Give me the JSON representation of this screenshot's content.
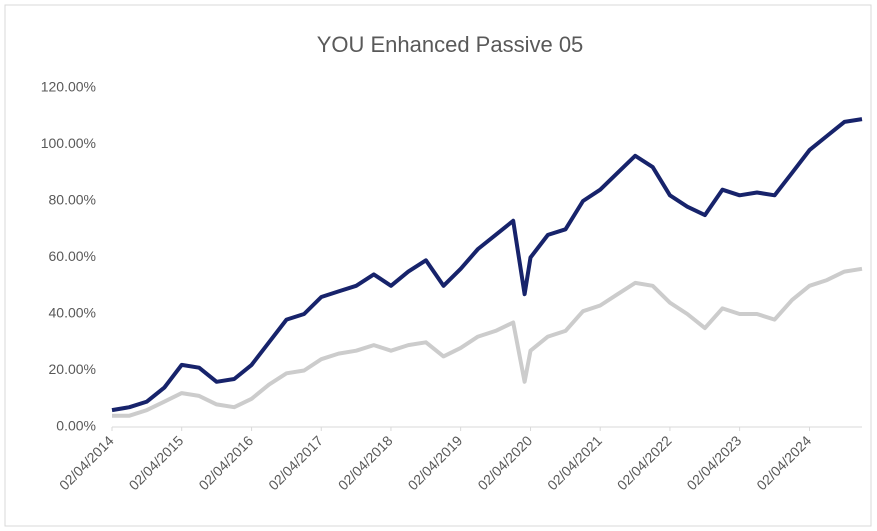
{
  "chart_data": {
    "type": "line",
    "title": "YOU Enhanced Passive 05",
    "x": [
      "02/04/2014",
      "02/07/2014",
      "02/10/2014",
      "02/01/2015",
      "02/04/2015",
      "02/07/2015",
      "02/10/2015",
      "02/01/2016",
      "02/04/2016",
      "02/07/2016",
      "02/10/2016",
      "02/01/2017",
      "02/04/2017",
      "02/07/2017",
      "02/10/2017",
      "02/01/2018",
      "02/04/2018",
      "02/07/2018",
      "02/10/2018",
      "02/01/2019",
      "02/04/2019",
      "02/07/2019",
      "02/10/2019",
      "02/01/2020",
      "02/03/2020",
      "02/04/2020",
      "02/07/2020",
      "02/10/2020",
      "02/01/2021",
      "02/04/2021",
      "02/07/2021",
      "02/10/2021",
      "02/01/2022",
      "02/04/2022",
      "02/07/2022",
      "02/10/2022",
      "02/01/2023",
      "02/04/2023",
      "02/07/2023",
      "02/10/2023",
      "02/01/2024",
      "02/04/2024",
      "02/07/2024",
      "02/10/2024",
      "02/01/2025"
    ],
    "series": [
      {
        "color": "#17236b",
        "values": [
          6,
          7,
          9,
          14,
          22,
          21,
          16,
          17,
          22,
          30,
          38,
          40,
          46,
          48,
          50,
          54,
          50,
          55,
          59,
          50,
          56,
          63,
          68,
          73,
          47,
          60,
          68,
          70,
          80,
          84,
          90,
          96,
          92,
          82,
          78,
          75,
          84,
          82,
          83,
          82,
          90,
          98,
          103,
          108,
          109
        ]
      },
      {
        "color": "#cccccc",
        "values": [
          4,
          4,
          6,
          9,
          12,
          11,
          8,
          7,
          10,
          15,
          19,
          20,
          24,
          26,
          27,
          29,
          27,
          29,
          30,
          25,
          28,
          32,
          34,
          37,
          16,
          27,
          32,
          34,
          41,
          43,
          47,
          51,
          50,
          44,
          40,
          35,
          42,
          40,
          40,
          38,
          45,
          50,
          52,
          55,
          56
        ]
      }
    ],
    "xlim": [
      "02/04/2014",
      "02/01/2025"
    ],
    "xticks": [
      "02/04/2014",
      "02/04/2015",
      "02/04/2016",
      "02/04/2017",
      "02/04/2018",
      "02/04/2019",
      "02/04/2020",
      "02/04/2021",
      "02/04/2022",
      "02/04/2023",
      "02/04/2024"
    ],
    "ylim": [
      0,
      120
    ],
    "yticks": [
      {
        "value": 0,
        "label": "0.00%"
      },
      {
        "value": 20,
        "label": "20.00%"
      },
      {
        "value": 40,
        "label": "40.00%"
      },
      {
        "value": 60,
        "label": "60.00%"
      },
      {
        "value": 80,
        "label": "80.00%"
      },
      {
        "value": 100,
        "label": "100.00%"
      },
      {
        "value": 120,
        "label": "120.00%"
      }
    ],
    "grid": false
  }
}
